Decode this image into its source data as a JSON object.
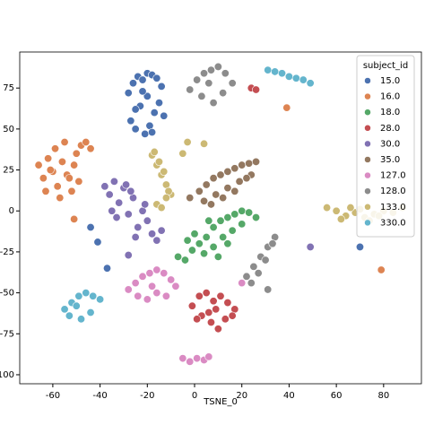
{
  "chart_data": {
    "type": "scatter",
    "xlabel": "TSNE_0",
    "xlim": [
      -74,
      96
    ],
    "ylim": [
      -105.5,
      97
    ],
    "xticks": [
      -60,
      -40,
      -20,
      0,
      20,
      40,
      60,
      80
    ],
    "yticks": [
      75,
      50,
      25,
      0,
      -25,
      -50,
      -75,
      -100
    ],
    "grid": false,
    "legend": {
      "title": "subject_id",
      "loc": "upper right"
    },
    "series": [
      {
        "name": "15.0",
        "color": "#4c72b0",
        "x": [
          -28,
          -26,
          -24,
          -22,
          -20,
          -18,
          -16,
          -14,
          -27,
          -25,
          -21,
          -19,
          -17,
          -15,
          -23,
          -20,
          -13,
          -25,
          -18,
          -22,
          -44,
          -41,
          -37,
          70
        ],
        "values": [
          72,
          78,
          82,
          80,
          84,
          83,
          81,
          76,
          55,
          50,
          47,
          52,
          60,
          66,
          64,
          70,
          58,
          62,
          48,
          73,
          -10,
          -19,
          -35,
          -22
        ]
      },
      {
        "name": "16.0",
        "color": "#dd8452",
        "x": [
          -66,
          -64,
          -62,
          -60,
          -58,
          -56,
          -54,
          -52,
          -50,
          -48,
          -46,
          -44,
          -63,
          -59,
          -55,
          -51,
          -57,
          -53,
          -61,
          -49,
          -51,
          39,
          79
        ],
        "values": [
          28,
          20,
          32,
          24,
          15,
          30,
          22,
          12,
          35,
          40,
          42,
          38,
          12,
          38,
          42,
          28,
          8,
          20,
          25,
          18,
          -5,
          63,
          -36
        ]
      },
      {
        "name": "18.0",
        "color": "#55a868",
        "x": [
          -7,
          -4,
          -1,
          2,
          5,
          8,
          11,
          14,
          17,
          20,
          23,
          26,
          0,
          4,
          8,
          12,
          16,
          20,
          -3,
          6,
          10,
          14
        ],
        "values": [
          -28,
          -30,
          -24,
          -20,
          -16,
          -10,
          -6,
          -4,
          -2,
          0,
          -1,
          -4,
          -14,
          -26,
          -22,
          -16,
          -12,
          -8,
          -18,
          -6,
          -28,
          -20
        ]
      },
      {
        "name": "28.0",
        "color": "#c44e52",
        "x": [
          -1,
          2,
          5,
          8,
          11,
          14,
          17,
          3,
          7,
          10,
          13,
          1,
          6,
          9,
          16,
          24,
          26
        ],
        "values": [
          -58,
          -52,
          -50,
          -55,
          -52,
          -56,
          -60,
          -64,
          -68,
          -72,
          -66,
          -66,
          -62,
          -60,
          -64,
          75,
          74
        ]
      },
      {
        "name": "30.0",
        "color": "#8172b3",
        "x": [
          -38,
          -36,
          -34,
          -32,
          -30,
          -28,
          -26,
          -24,
          -22,
          -20,
          -18,
          -16,
          -14,
          -33,
          -29,
          -25,
          -21,
          -35,
          -27,
          -28,
          49
        ],
        "values": [
          15,
          10,
          18,
          5,
          14,
          -2,
          8,
          -10,
          0,
          -6,
          -14,
          -18,
          -12,
          -4,
          16,
          -16,
          4,
          0,
          12,
          -27,
          -22
        ]
      },
      {
        "name": "35.0",
        "color": "#937860",
        "x": [
          -2,
          2,
          5,
          8,
          11,
          14,
          17,
          20,
          23,
          26,
          4,
          9,
          14,
          19,
          24,
          7,
          12,
          17,
          22
        ],
        "values": [
          8,
          12,
          16,
          20,
          22,
          24,
          26,
          28,
          29,
          30,
          6,
          10,
          14,
          18,
          22,
          4,
          8,
          12,
          20
        ]
      },
      {
        "name": "127.0",
        "color": "#da8bc3",
        "x": [
          -28,
          -25,
          -22,
          -19,
          -16,
          -13,
          -10,
          -8,
          -24,
          -20,
          -16,
          -12,
          -18,
          -5,
          -2,
          1,
          4,
          6,
          20
        ],
        "values": [
          -48,
          -44,
          -40,
          -38,
          -36,
          -38,
          -42,
          -46,
          -52,
          -54,
          -50,
          -52,
          -46,
          -90,
          -92,
          -90,
          -91,
          -89,
          -44
        ]
      },
      {
        "name": "128.0",
        "color": "#8c8c8c",
        "x": [
          -2,
          1,
          4,
          7,
          10,
          13,
          16,
          3,
          8,
          12,
          6,
          22,
          25,
          28,
          31,
          34,
          24,
          27,
          30,
          33,
          31
        ],
        "values": [
          74,
          80,
          84,
          86,
          88,
          84,
          78,
          70,
          66,
          72,
          78,
          -40,
          -34,
          -28,
          -22,
          -16,
          -44,
          -38,
          -30,
          -20,
          -48
        ]
      },
      {
        "name": "133.0",
        "color": "#ccb974",
        "x": [
          -18,
          -16,
          -14,
          -12,
          -10,
          -17,
          -15,
          -13,
          -11,
          -16,
          -14,
          -12,
          56,
          60,
          64,
          68,
          72,
          76,
          80,
          84,
          88,
          62,
          70,
          78,
          66,
          74,
          -3,
          4,
          -5
        ],
        "values": [
          34,
          28,
          22,
          16,
          10,
          36,
          30,
          24,
          12,
          4,
          2,
          8,
          2,
          0,
          -3,
          -1,
          -4,
          -2,
          0,
          -1,
          2,
          -5,
          1,
          -3,
          2,
          -6,
          42,
          41,
          35
        ]
      },
      {
        "name": "330.0",
        "color": "#64b5cd",
        "x": [
          -55,
          -52,
          -49,
          -46,
          -43,
          -40,
          -53,
          -48,
          -44,
          -50,
          31,
          34,
          37,
          40,
          43,
          46,
          49
        ],
        "values": [
          -60,
          -56,
          -52,
          -50,
          -52,
          -54,
          -64,
          -66,
          -62,
          -58,
          86,
          85,
          84,
          82,
          81,
          80,
          78
        ]
      }
    ]
  }
}
